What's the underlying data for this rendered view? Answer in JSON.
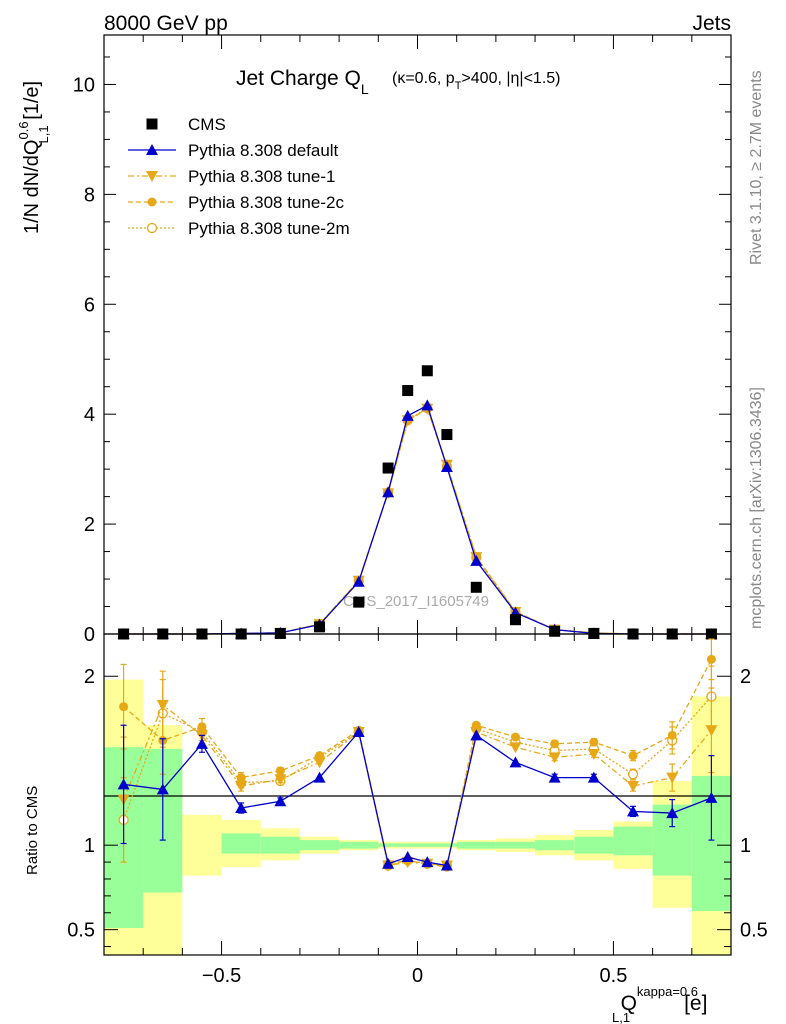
{
  "header": {
    "left": "8000 GeV pp",
    "right": "Jets",
    "side_top": "Rivet 3.1.10, ≥ 2.7M events",
    "side_bottom": "mcplots.cern.ch [arXiv:1306.3436]",
    "watermark": "CMS_2017_I1605749"
  },
  "chart_data": [
    {
      "type": "scatter",
      "title_main": "Jet Charge Q",
      "title_sub": "L",
      "title_cond": "(κ=0.6, p",
      "title_cond_sub": "T",
      "title_cond_end": ">400, |η|<1.5)",
      "ylabel": "1/N dN/dQ",
      "ylabel_sup": "0.6",
      "ylabel_sub": "L,1",
      "ylabel_unit": " [1/e]",
      "xlim": [
        -0.8,
        0.8
      ],
      "ylim": [
        0,
        10.9
      ],
      "yticks": [
        0,
        2,
        4,
        6,
        8,
        10
      ],
      "x": [
        -0.75,
        -0.65,
        -0.55,
        -0.45,
        -0.35,
        -0.25,
        -0.15,
        -0.075,
        -0.025,
        0.025,
        0.075,
        0.15,
        0.25,
        0.35,
        0.45,
        0.55,
        0.65,
        0.75
      ],
      "series": [
        {
          "name": "CMS",
          "key": "cms",
          "color": "#000000",
          "values": [
            0.0,
            0.0,
            0.0,
            0.0,
            0.01,
            0.13,
            0.58,
            3.02,
            4.43,
            4.79,
            3.63,
            0.85,
            0.26,
            0.05,
            0.01,
            0.0,
            0.0,
            0.0
          ]
        },
        {
          "name": "Pythia 8.308 default",
          "key": "default",
          "color": "#0000cc",
          "values": [
            0.0,
            0.0,
            0.0,
            0.01,
            0.02,
            0.17,
            0.95,
            2.58,
            3.97,
            4.16,
            3.04,
            1.33,
            0.39,
            0.08,
            0.01,
            0.0,
            0.0,
            0.0
          ]
        },
        {
          "name": "Pythia 8.308 tune-1",
          "key": "tune1",
          "color": "#e6a817",
          "values": [
            0.0,
            0.0,
            0.0,
            0.01,
            0.02,
            0.18,
            0.97,
            2.56,
            3.89,
            4.1,
            3.08,
            1.4,
            0.4,
            0.08,
            0.02,
            0.0,
            0.0,
            0.0
          ]
        },
        {
          "name": "Pythia 8.308 tune-2c",
          "key": "tune2c",
          "color": "#e6a817",
          "values": [
            0.0,
            0.0,
            0.0,
            0.01,
            0.02,
            0.18,
            0.97,
            2.57,
            3.88,
            4.1,
            3.06,
            1.41,
            0.41,
            0.08,
            0.02,
            0.0,
            0.0,
            0.0
          ]
        },
        {
          "name": "Pythia 8.308 tune-2m",
          "key": "tune2m",
          "color": "#e6a817",
          "values": [
            0.0,
            0.0,
            0.0,
            0.01,
            0.02,
            0.18,
            0.97,
            2.57,
            3.89,
            4.11,
            3.05,
            1.39,
            0.4,
            0.08,
            0.02,
            0.0,
            0.0,
            0.0
          ]
        }
      ],
      "legend_position": "top-left"
    },
    {
      "type": "scatter",
      "ylabel": "Ratio to CMS",
      "xlabel": "Q",
      "xlabel_sup": "kappa=0.6",
      "xlabel_sub": "L,1",
      "xlabel_unit": "[e]",
      "xlim": [
        -0.8,
        0.8
      ],
      "ylim": [
        0.35,
        2.25
      ],
      "xticks": [
        -0.5,
        0,
        0.5
      ],
      "xtick_labels": [
        "−0.5",
        "0",
        "0.5"
      ],
      "yticks": [
        0.5,
        1,
        2
      ],
      "ytick_labels": [
        "0.5",
        "1",
        "2"
      ],
      "bins": [
        [
          -0.8,
          -0.7
        ],
        [
          -0.7,
          -0.6
        ],
        [
          -0.6,
          -0.5
        ],
        [
          -0.5,
          -0.4
        ],
        [
          -0.4,
          -0.3
        ],
        [
          -0.3,
          -0.2
        ],
        [
          -0.2,
          -0.1
        ],
        [
          -0.1,
          -0.05
        ],
        [
          -0.05,
          0.0
        ],
        [
          0.0,
          0.05
        ],
        [
          0.05,
          0.1
        ],
        [
          0.1,
          0.2
        ],
        [
          0.2,
          0.3
        ],
        [
          0.3,
          0.4
        ],
        [
          0.4,
          0.5
        ],
        [
          0.5,
          0.6
        ],
        [
          0.6,
          0.7
        ],
        [
          0.7,
          0.8
        ]
      ],
      "band_stat": [
        [
          0.51,
          1.58
        ],
        [
          0.72,
          1.57
        ],
        [
          1.0,
          1.0
        ],
        [
          0.95,
          1.07
        ],
        [
          0.95,
          1.05
        ],
        [
          0.97,
          1.03
        ],
        [
          0.98,
          1.02
        ],
        [
          0.99,
          1.01
        ],
        [
          0.99,
          1.01
        ],
        [
          0.99,
          1.01
        ],
        [
          0.99,
          1.01
        ],
        [
          0.98,
          1.02
        ],
        [
          0.98,
          1.02
        ],
        [
          0.97,
          1.03
        ],
        [
          0.95,
          1.05
        ],
        [
          0.94,
          1.11
        ],
        [
          0.82,
          1.24
        ],
        [
          0.61,
          1.41
        ]
      ],
      "band_total": [
        [
          0.35,
          1.98
        ],
        [
          0.35,
          1.71
        ],
        [
          0.82,
          1.18
        ],
        [
          0.87,
          1.15
        ],
        [
          0.91,
          1.1
        ],
        [
          0.95,
          1.05
        ],
        [
          0.97,
          1.03
        ],
        [
          0.98,
          1.02
        ],
        [
          0.98,
          1.02
        ],
        [
          0.98,
          1.02
        ],
        [
          0.98,
          1.02
        ],
        [
          0.97,
          1.03
        ],
        [
          0.96,
          1.04
        ],
        [
          0.94,
          1.06
        ],
        [
          0.91,
          1.09
        ],
        [
          0.86,
          1.14
        ],
        [
          0.63,
          1.38
        ],
        [
          0.35,
          1.88
        ]
      ],
      "series": [
        {
          "key": "default",
          "values": [
            1.36,
            1.33,
            1.6,
            1.22,
            1.26,
            1.4,
            1.67,
            0.89,
            0.93,
            0.9,
            0.88,
            1.65,
            1.49,
            1.4,
            1.4,
            1.2,
            1.19,
            1.28
          ],
          "errors": [
            0.35,
            0.3,
            0.05,
            0.03,
            0.02,
            0.01,
            0.01,
            0.01,
            0.01,
            0.01,
            0.01,
            0.01,
            0.01,
            0.02,
            0.02,
            0.03,
            0.08,
            0.25
          ]
        },
        {
          "key": "tune1",
          "values": [
            1.27,
            1.83,
            1.65,
            1.35,
            1.39,
            1.49,
            1.67,
            0.88,
            0.9,
            0.89,
            0.88,
            1.67,
            1.58,
            1.52,
            1.54,
            1.35,
            1.4,
            1.68
          ],
          "errors": [
            0.37,
            0.2,
            0.05,
            0.03,
            0.02,
            0.01,
            0.01,
            0.01,
            0.01,
            0.01,
            0.01,
            0.01,
            0.01,
            0.02,
            0.02,
            0.03,
            0.08,
            0.25
          ]
        },
        {
          "key": "tune2c",
          "values": [
            1.82,
            1.62,
            1.7,
            1.4,
            1.44,
            1.53,
            1.68,
            0.89,
            0.91,
            0.89,
            0.87,
            1.71,
            1.64,
            1.6,
            1.61,
            1.53,
            1.65,
            2.1
          ],
          "errors": [
            0.25,
            0.2,
            0.05,
            0.03,
            0.02,
            0.01,
            0.01,
            0.01,
            0.01,
            0.01,
            0.01,
            0.01,
            0.01,
            0.02,
            0.02,
            0.03,
            0.08,
            0.12
          ]
        },
        {
          "key": "tune2m",
          "values": [
            1.15,
            1.78,
            1.67,
            1.37,
            1.38,
            1.52,
            1.67,
            0.88,
            0.91,
            0.89,
            0.88,
            1.69,
            1.61,
            1.56,
            1.57,
            1.42,
            1.62,
            1.88
          ],
          "errors": [
            0.25,
            0.2,
            0.05,
            0.03,
            0.02,
            0.01,
            0.01,
            0.01,
            0.01,
            0.01,
            0.01,
            0.01,
            0.01,
            0.02,
            0.02,
            0.03,
            0.08,
            0.18
          ]
        }
      ],
      "band_colors": {
        "stat": "#99ff99",
        "total": "#ffff99"
      }
    }
  ]
}
